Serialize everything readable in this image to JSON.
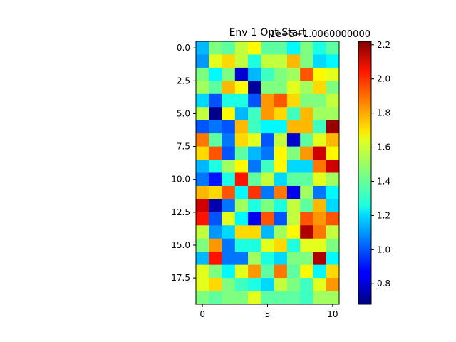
{
  "chart_data": {
    "type": "heatmap",
    "title": "Env 1 Opt Start",
    "offset_text": "1e−5+1.0060000000",
    "xlabel": "",
    "ylabel": "",
    "x_ticks": [
      "0",
      "5",
      "10"
    ],
    "y_ticks": [
      "0.0",
      "2.5",
      "5.0",
      "7.5",
      "10.0",
      "12.5",
      "15.0",
      "17.5"
    ],
    "colorbar_ticks": [
      "0.8",
      "1.0",
      "1.2",
      "1.4",
      "1.6",
      "1.8",
      "2.0",
      "2.2"
    ],
    "colorbar_range": [
      0.68,
      2.22
    ],
    "colormap": "jet",
    "xlim": [
      -0.5,
      10.5
    ],
    "ylim": [
      19.5,
      -0.5
    ],
    "grid": false,
    "rows": 20,
    "cols": 11,
    "values": [
      [
        1.15,
        1.45,
        1.4,
        1.55,
        1.65,
        1.4,
        1.4,
        1.25,
        1.45,
        1.3,
        1.4
      ],
      [
        1.1,
        1.6,
        1.7,
        1.55,
        1.3,
        1.55,
        1.55,
        1.75,
        1.45,
        1.2,
        1.25
      ],
      [
        1.45,
        1.25,
        1.45,
        0.8,
        1.15,
        1.35,
        1.45,
        1.5,
        1.9,
        1.65,
        1.6
      ],
      [
        1.5,
        1.4,
        1.75,
        1.65,
        0.72,
        1.45,
        1.45,
        1.6,
        1.5,
        1.7,
        1.45
      ],
      [
        1.2,
        1.0,
        1.3,
        1.3,
        1.0,
        1.8,
        1.9,
        1.7,
        1.45,
        1.45,
        1.55
      ],
      [
        1.55,
        0.7,
        1.65,
        1.15,
        1.35,
        1.8,
        1.7,
        1.35,
        1.75,
        1.5,
        1.5
      ],
      [
        1.0,
        1.05,
        1.0,
        1.75,
        1.35,
        1.25,
        1.25,
        1.75,
        1.75,
        1.35,
        2.18
      ],
      [
        1.85,
        1.4,
        1.05,
        1.7,
        1.6,
        1.0,
        1.55,
        0.8,
        1.4,
        1.6,
        1.75
      ],
      [
        1.7,
        1.9,
        1.0,
        1.4,
        1.15,
        1.05,
        1.65,
        1.45,
        1.8,
        2.1,
        1.65
      ],
      [
        1.15,
        1.3,
        1.5,
        1.65,
        1.05,
        1.35,
        1.65,
        1.2,
        1.2,
        1.85,
        2.1
      ],
      [
        1.05,
        0.9,
        1.3,
        2.0,
        1.4,
        1.55,
        1.2,
        1.4,
        1.4,
        1.6,
        1.5
      ],
      [
        1.75,
        1.7,
        1.9,
        1.25,
        1.95,
        1.05,
        1.85,
        0.85,
        1.5,
        1.05,
        1.25
      ],
      [
        2.1,
        0.75,
        1.05,
        1.5,
        1.3,
        1.45,
        1.3,
        1.55,
        1.4,
        1.75,
        1.2
      ],
      [
        2.0,
        1.0,
        1.6,
        1.25,
        0.85,
        1.9,
        1.0,
        1.55,
        1.9,
        1.8,
        1.9
      ],
      [
        1.55,
        1.1,
        1.2,
        1.7,
        1.7,
        1.15,
        1.5,
        1.65,
        2.15,
        1.85,
        1.55
      ],
      [
        1.45,
        1.8,
        1.05,
        1.3,
        1.3,
        1.6,
        1.7,
        1.3,
        1.6,
        1.6,
        1.45
      ],
      [
        1.15,
        2.0,
        1.05,
        1.05,
        1.5,
        1.3,
        1.2,
        1.45,
        1.45,
        2.15,
        1.25
      ],
      [
        1.6,
        1.45,
        1.25,
        1.6,
        1.8,
        1.4,
        1.85,
        1.4,
        1.65,
        1.25,
        1.7
      ],
      [
        1.6,
        1.7,
        1.45,
        1.35,
        1.3,
        1.2,
        1.55,
        1.45,
        1.35,
        1.6,
        1.8
      ],
      [
        1.45,
        1.4,
        1.45,
        1.45,
        1.6,
        1.4,
        1.4,
        1.4,
        1.35,
        1.5,
        1.5
      ]
    ]
  }
}
